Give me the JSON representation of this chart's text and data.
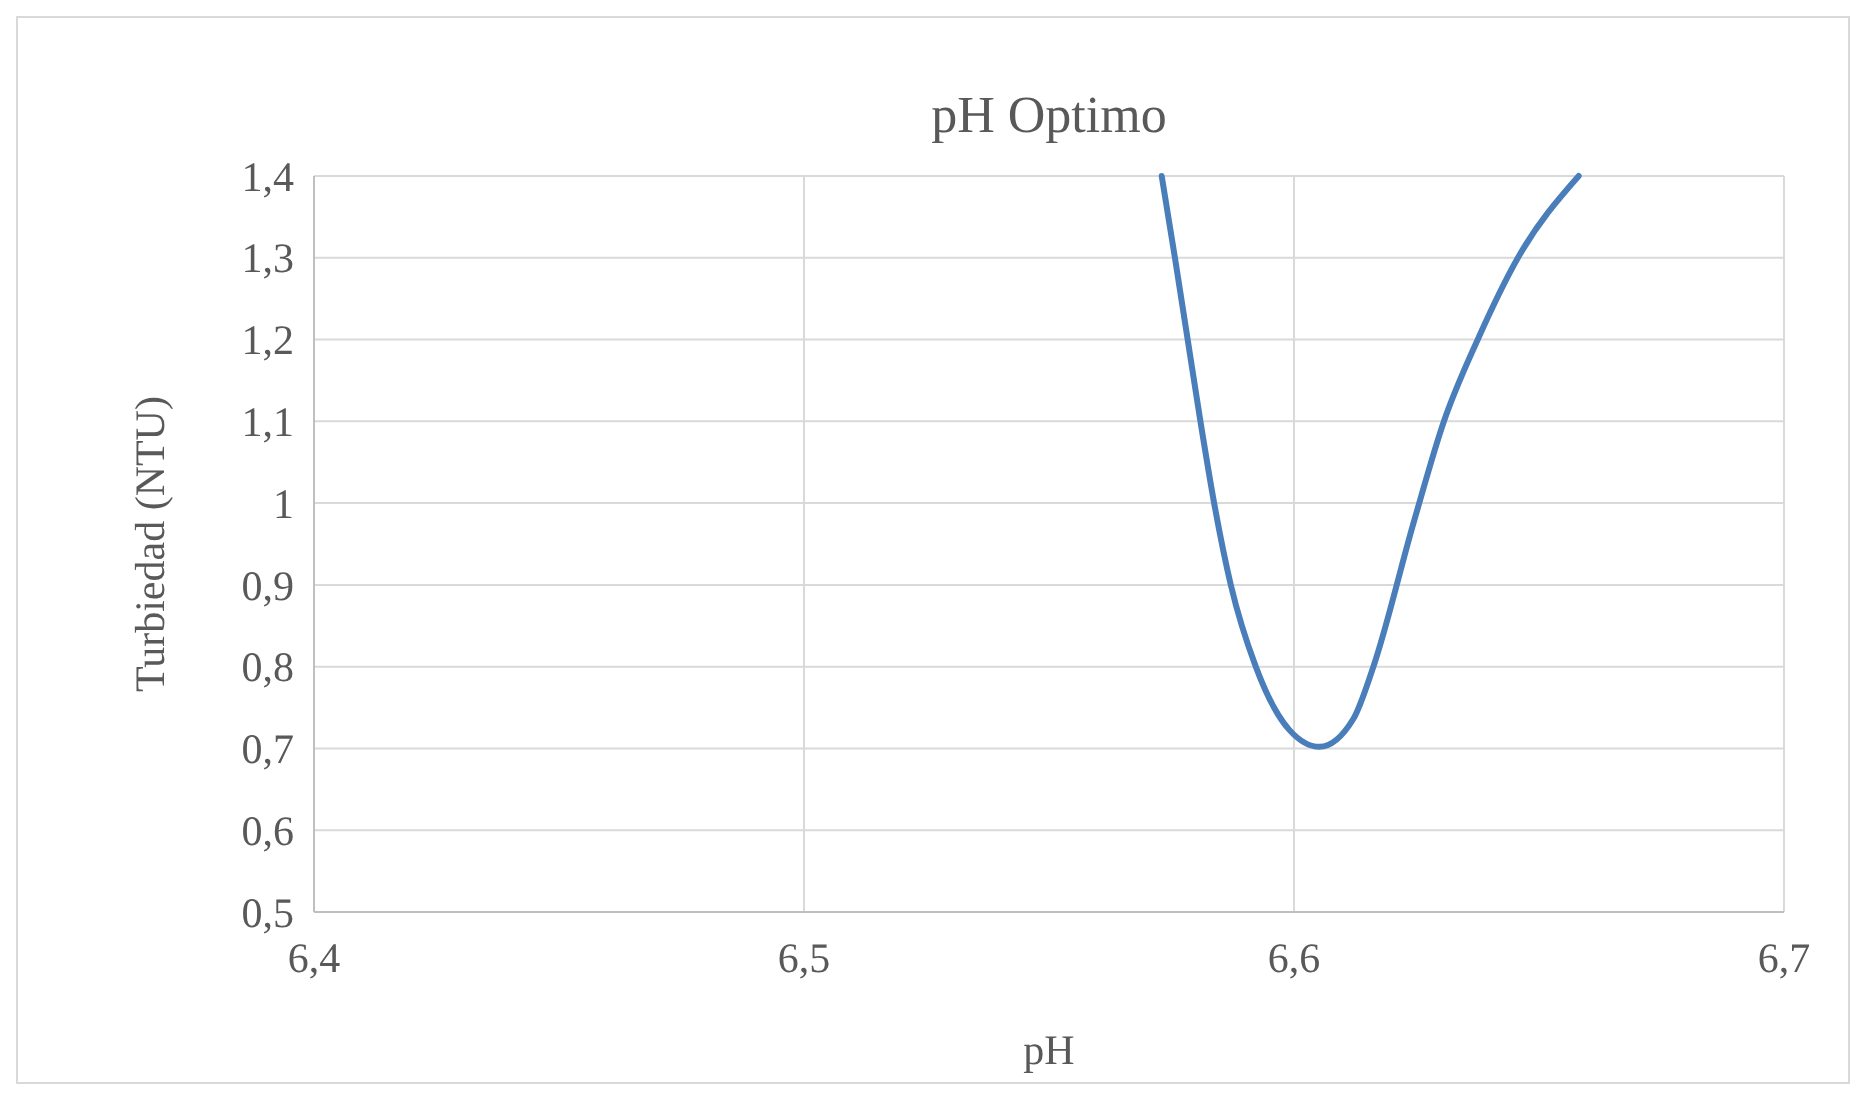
{
  "chart_data": {
    "type": "line",
    "title": "pH Optimo",
    "xlabel": "pH",
    "ylabel": "Turbiedad (NTU)",
    "series": [
      {
        "color": "#4a7ebb",
        "x": [
          6.573,
          6.5757,
          6.5783,
          6.5809,
          6.5837,
          6.5871,
          6.5922,
          6.599,
          6.6052,
          6.6121,
          6.6162,
          6.6245,
          6.6306,
          6.6375,
          6.6457,
          6.6581
        ],
        "values": [
          1.4,
          1.3,
          1.2,
          1.1,
          1.0,
          0.9,
          0.8,
          0.723,
          0.702,
          0.736,
          0.8,
          0.978,
          1.1,
          1.2,
          1.3,
          1.4
        ]
      }
    ],
    "xlim": [
      6.4,
      6.7
    ],
    "ylim": [
      0.5,
      1.4
    ],
    "xticks": [
      {
        "value": 6.4,
        "label": "6,4"
      },
      {
        "value": 6.5,
        "label": "6,5"
      },
      {
        "value": 6.6,
        "label": "6,6"
      },
      {
        "value": 6.7,
        "label": "6,7"
      }
    ],
    "yticks": [
      {
        "value": 0.5,
        "label": "0,5"
      },
      {
        "value": 0.6,
        "label": "0,6"
      },
      {
        "value": 0.7,
        "label": "0,7"
      },
      {
        "value": 0.8,
        "label": "0,8"
      },
      {
        "value": 0.9,
        "label": "0,9"
      },
      1,
      {
        "value": 1.1,
        "label": "1,1"
      },
      {
        "value": 1.2,
        "label": "1,2"
      },
      {
        "value": 1.3,
        "label": "1,3"
      },
      {
        "value": 1.4,
        "label": "1,4"
      }
    ],
    "grid": true,
    "marker": "none",
    "line_style": "solid"
  }
}
